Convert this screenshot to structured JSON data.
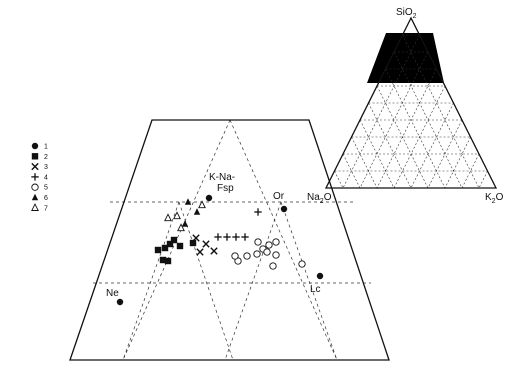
{
  "chart_data": {
    "type": "scatter",
    "title": "",
    "subtitle": "",
    "legend_position": "left",
    "legend": [
      {
        "label": "1",
        "marker": "circle-filled"
      },
      {
        "label": "2",
        "marker": "square-filled"
      },
      {
        "label": "3",
        "marker": "cross-x"
      },
      {
        "label": "4",
        "marker": "plus"
      },
      {
        "label": "5",
        "marker": "circle-open"
      },
      {
        "label": "6",
        "marker": "triangle-filled"
      },
      {
        "label": "7",
        "marker": "triangle-open"
      }
    ],
    "main_diagram": {
      "kind": "ternary-subset",
      "grid": "dashed",
      "point_labels": [
        {
          "text": "K-Na-"
        },
        {
          "text": "Fsp"
        },
        {
          "text": "Or"
        },
        {
          "text": "Ne"
        },
        {
          "text": "Lc"
        }
      ],
      "series": [
        {
          "name": "1",
          "points": [
            [
              209,
              198
            ],
            [
              284,
              209
            ],
            [
              320,
              276
            ],
            [
              120,
              302
            ]
          ]
        },
        {
          "name": "2",
          "points": [
            [
              158,
              250
            ],
            [
              165,
              248
            ],
            [
              170,
              244
            ],
            [
              174,
              240
            ],
            [
              180,
              246
            ],
            [
              163,
              260
            ],
            [
              168,
              261
            ],
            [
              193,
              243
            ]
          ]
        },
        {
          "name": "3",
          "points": [
            [
              196,
              238
            ],
            [
              206,
              244
            ],
            [
              200,
              252
            ],
            [
              214,
              251
            ]
          ]
        },
        {
          "name": "4",
          "points": [
            [
              258,
              212
            ],
            [
              218,
              237
            ],
            [
              227,
              237
            ],
            [
              236,
              237
            ],
            [
              245,
              237
            ]
          ]
        },
        {
          "name": "5",
          "points": [
            [
              258,
              242
            ],
            [
              263,
              249
            ],
            [
              269,
              245
            ],
            [
              276,
              242
            ],
            [
              267,
              252
            ],
            [
              257,
              254
            ],
            [
              276,
              255
            ],
            [
              247,
              256
            ],
            [
              238,
              261
            ],
            [
              302,
              264
            ],
            [
              273,
              266
            ],
            [
              235,
              256
            ]
          ]
        },
        {
          "name": "6",
          "points": [
            [
              188,
              202
            ],
            [
              197,
              212
            ],
            [
              185,
              224
            ]
          ]
        },
        {
          "name": "7",
          "points": [
            [
              177,
              216
            ],
            [
              168,
              218
            ],
            [
              181,
              228
            ],
            [
              202,
              205
            ]
          ]
        }
      ]
    },
    "inset_diagram": {
      "kind": "ternary",
      "vertices": [
        "SiO",
        "Na",
        "K"
      ],
      "highlight": "shaded region near SiO2 apex",
      "grid": "dashed"
    }
  },
  "labels": {
    "inset_top": "SiO",
    "inset_top_sub": "2",
    "inset_left": "Na",
    "inset_left_sub": "2",
    "inset_left_end": "O",
    "inset_right": "K",
    "inset_right_sub": "2",
    "inset_right_end": "O",
    "kna": "K-Na-",
    "fsp": "Fsp",
    "or": "Or",
    "ne": "Ne",
    "lc": "Lc"
  },
  "colors": {
    "ink": "#111111",
    "background": "#ffffff"
  }
}
